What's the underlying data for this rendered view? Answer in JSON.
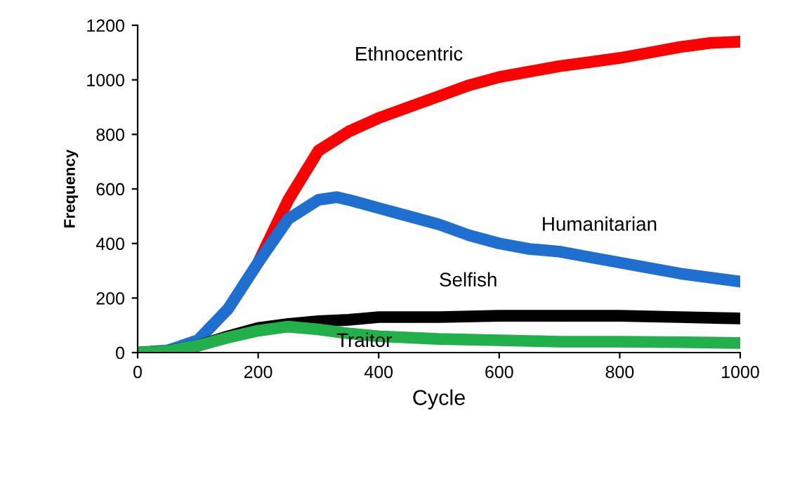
{
  "chart_data": {
    "type": "line",
    "xlabel": "Cycle",
    "ylabel": "Frequency",
    "xlim": [
      0,
      1000
    ],
    "ylim": [
      0,
      1200
    ],
    "xticks": [
      0,
      200,
      400,
      600,
      800,
      1000
    ],
    "yticks": [
      0,
      200,
      400,
      600,
      800,
      1000,
      1200
    ],
    "grid": false,
    "legend": false,
    "marker": "none",
    "line_style": "solid",
    "series": [
      {
        "name": "Ethnocentric",
        "color": "#ff0000",
        "x": [
          200,
          250,
          300,
          350,
          400,
          450,
          500,
          550,
          600,
          650,
          700,
          750,
          800,
          850,
          900,
          950,
          1000
        ],
        "values": [
          330,
          560,
          740,
          810,
          860,
          900,
          940,
          980,
          1010,
          1030,
          1050,
          1065,
          1080,
          1100,
          1120,
          1135,
          1140
        ]
      },
      {
        "name": "Humanitarian",
        "color": "#1f6fd0",
        "x": [
          0,
          50,
          100,
          150,
          200,
          250,
          300,
          330,
          350,
          400,
          450,
          500,
          550,
          600,
          650,
          700,
          750,
          800,
          850,
          900,
          950,
          1000
        ],
        "values": [
          0,
          8,
          45,
          160,
          330,
          490,
          560,
          570,
          560,
          530,
          500,
          470,
          430,
          400,
          380,
          370,
          350,
          330,
          310,
          290,
          275,
          260
        ]
      },
      {
        "name": "Selfish",
        "color": "#000000",
        "x": [
          0,
          50,
          100,
          150,
          200,
          250,
          300,
          350,
          400,
          500,
          600,
          700,
          800,
          900,
          1000
        ],
        "values": [
          0,
          5,
          25,
          60,
          90,
          105,
          115,
          120,
          130,
          130,
          135,
          135,
          135,
          130,
          125
        ]
      },
      {
        "name": "Traitor",
        "color": "#22b04a",
        "x": [
          0,
          50,
          100,
          150,
          200,
          250,
          300,
          350,
          400,
          500,
          600,
          700,
          800,
          900,
          1000
        ],
        "values": [
          0,
          5,
          25,
          55,
          80,
          95,
          85,
          70,
          60,
          50,
          45,
          40,
          40,
          38,
          35
        ]
      }
    ]
  }
}
